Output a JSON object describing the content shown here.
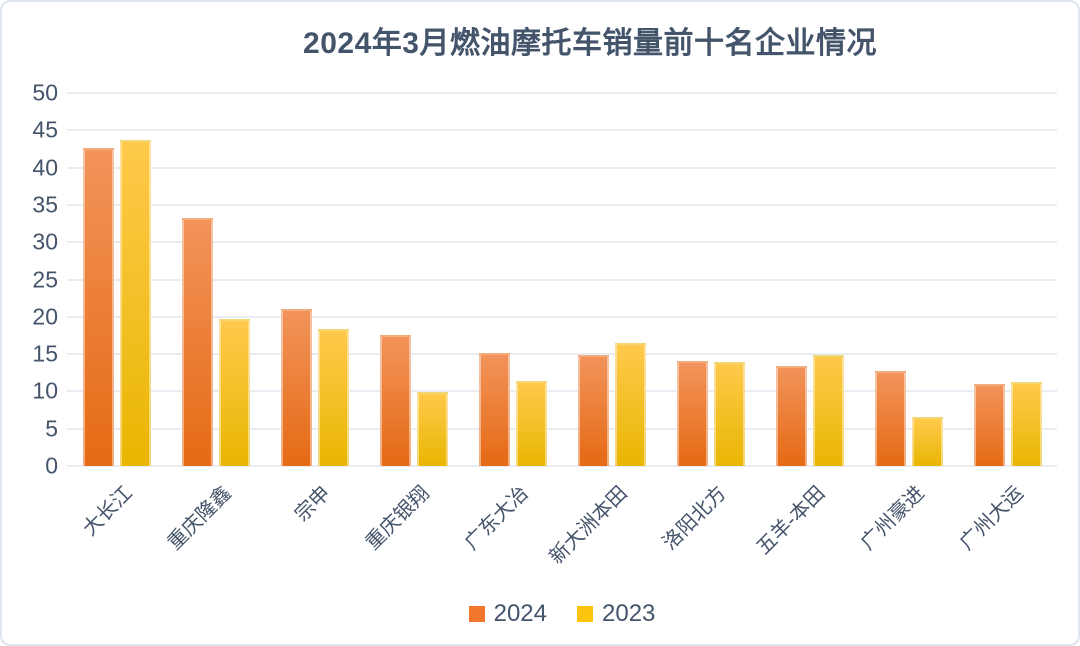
{
  "colors": {
    "text": "#44546A",
    "gridline": "#E9EDF3",
    "series_2024_top": "#F2935A",
    "series_2024_bottom": "#E56A14",
    "series_2023_top": "#FFC94B",
    "series_2023_bottom": "#E9B602",
    "legend_2024_swatch": "#F2762B",
    "legend_2023_swatch": "#FDC40E"
  },
  "chart_data": {
    "type": "bar",
    "title": "2024年3月燃油摩托车销量前十名企业情况",
    "categories": [
      "大长江",
      "重庆隆鑫",
      "宗申",
      "重庆银翔",
      "广东大冶",
      "新大洲本田",
      "洛阳北方",
      "五羊-本田",
      "广州豪进",
      "广州大运"
    ],
    "series": [
      {
        "name": "2024",
        "values": [
          42.6,
          33.2,
          21.1,
          17.6,
          15.2,
          14.9,
          14.1,
          13.4,
          12.7,
          11.0
        ]
      },
      {
        "name": "2023",
        "values": [
          43.7,
          19.7,
          18.3,
          9.9,
          11.4,
          16.5,
          14.0,
          14.9,
          6.6,
          11.2
        ]
      }
    ],
    "ylim": [
      0,
      50
    ],
    "ytick_step": 5,
    "ytick_labels": [
      "0",
      "5",
      "10",
      "15",
      "20",
      "25",
      "30",
      "35",
      "40",
      "45",
      "50"
    ],
    "grid": true,
    "legend_position": "bottom",
    "xlabel": "",
    "ylabel": ""
  }
}
